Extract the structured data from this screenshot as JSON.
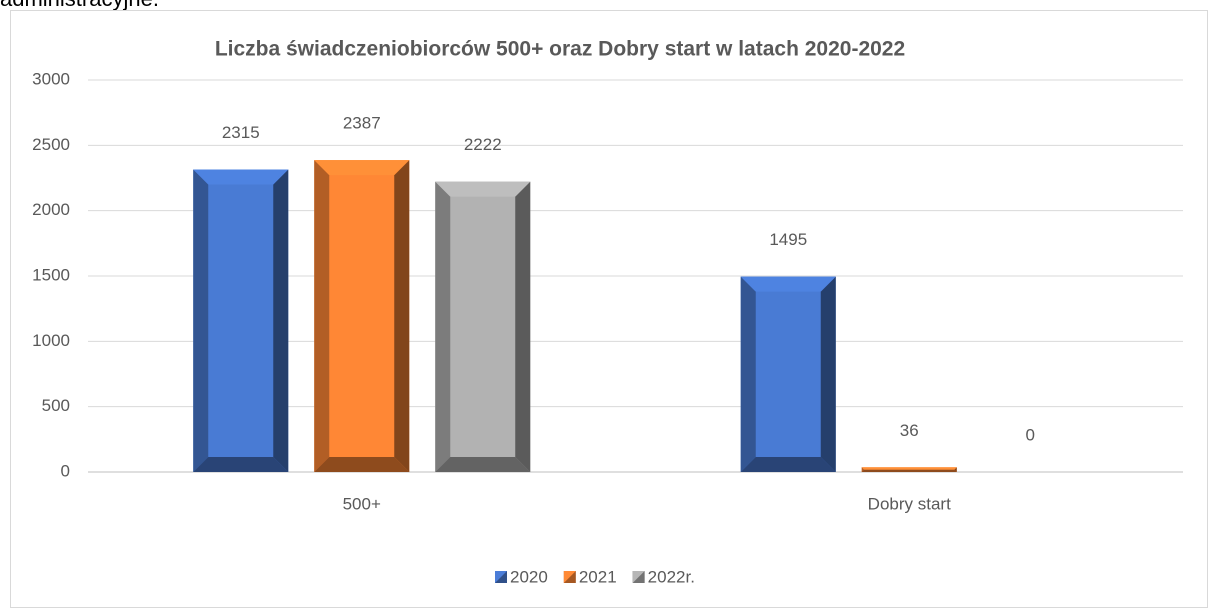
{
  "page_text": "administracyjne.",
  "chart_data": {
    "type": "bar",
    "title": "Liczba świadczeniobiorców 500+ oraz Dobry start w latach 2020-2022",
    "categories": [
      "500+",
      "Dobry start"
    ],
    "series": [
      {
        "name": "2020",
        "color": "#4472c4",
        "values": [
          2315,
          1495
        ]
      },
      {
        "name": "2021",
        "color": "#ed7d31",
        "values": [
          2387,
          36
        ]
      },
      {
        "name": "2022r.",
        "color": "#a5a5a5",
        "values": [
          2222,
          0
        ]
      }
    ],
    "ylim": [
      0,
      3000
    ],
    "yticks": [
      0,
      500,
      1000,
      1500,
      2000,
      2500,
      3000
    ],
    "grid": true,
    "legend": "bottom"
  }
}
